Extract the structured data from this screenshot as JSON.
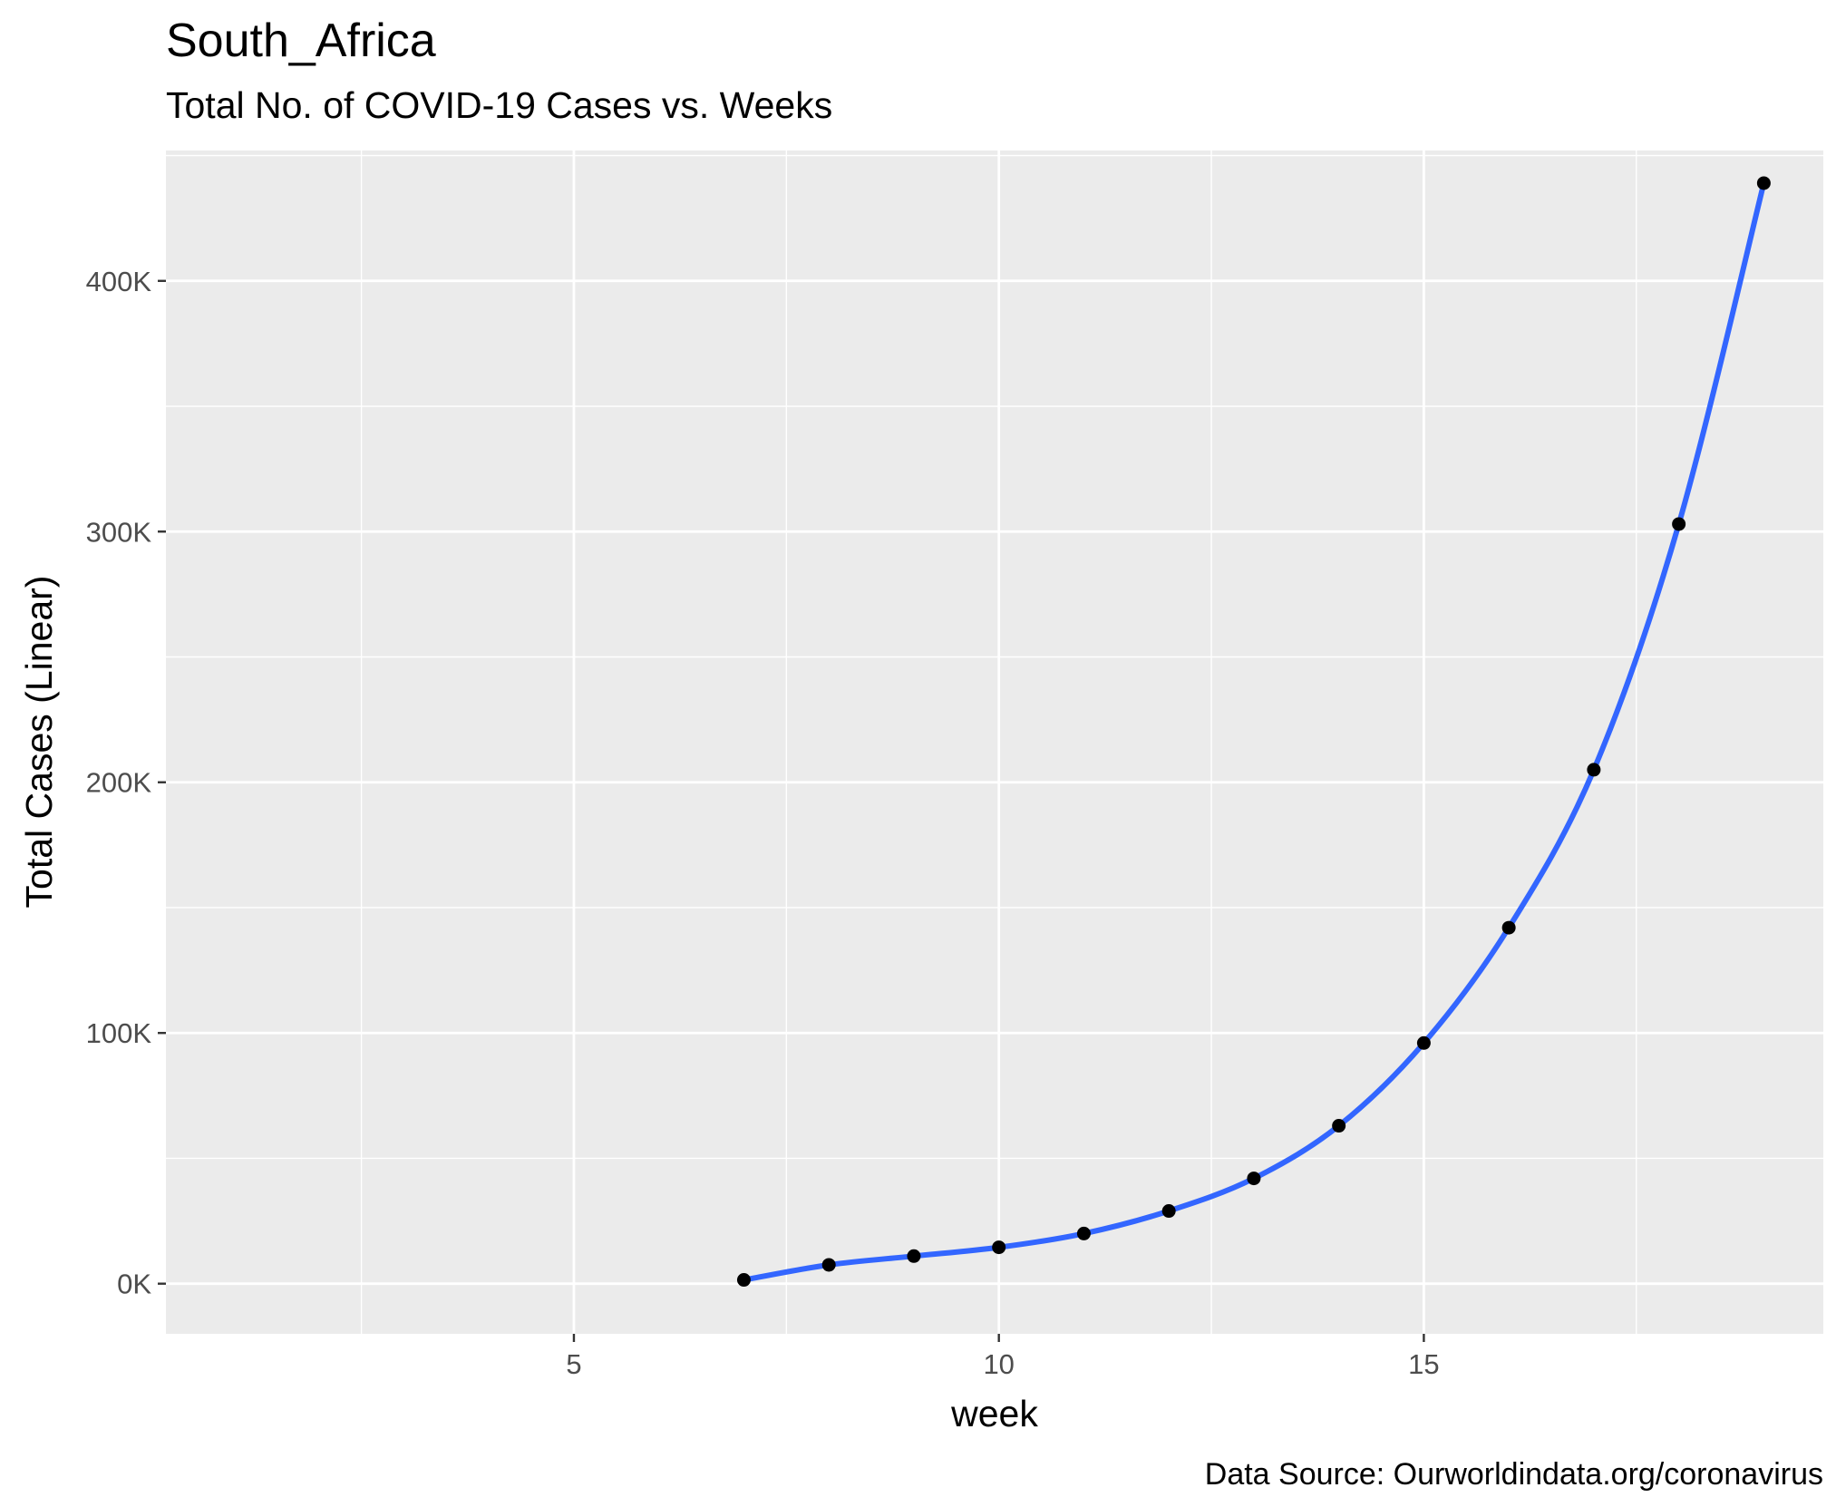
{
  "chart_data": {
    "type": "line",
    "title": "South_Africa",
    "subtitle": "Total No. of COVID-19 Cases vs. Weeks",
    "xlabel": "week",
    "ylabel": "Total Cases (Linear)",
    "caption": "Data Source: Ourworldindata.org/coronavirus",
    "xlim": [
      0.2,
      19.7
    ],
    "ylim": [
      -20000,
      452000
    ],
    "x_ticks": [
      5,
      10,
      15
    ],
    "x_tick_labels": [
      "5",
      "10",
      "15"
    ],
    "y_ticks": [
      0,
      100000,
      200000,
      300000,
      400000
    ],
    "y_tick_labels": [
      "0K",
      "100K",
      "200K",
      "300K",
      "400K"
    ],
    "grid": true,
    "series": [
      {
        "color": "#3366ff",
        "points_color": "#000000",
        "x": [
          7,
          8,
          9,
          10,
          11,
          12,
          13,
          14,
          15,
          16,
          17,
          18,
          19
        ],
        "y": [
          1500,
          7500,
          11000,
          14500,
          20000,
          29000,
          42000,
          63000,
          96000,
          142000,
          205000,
          303000,
          439000
        ]
      }
    ]
  }
}
